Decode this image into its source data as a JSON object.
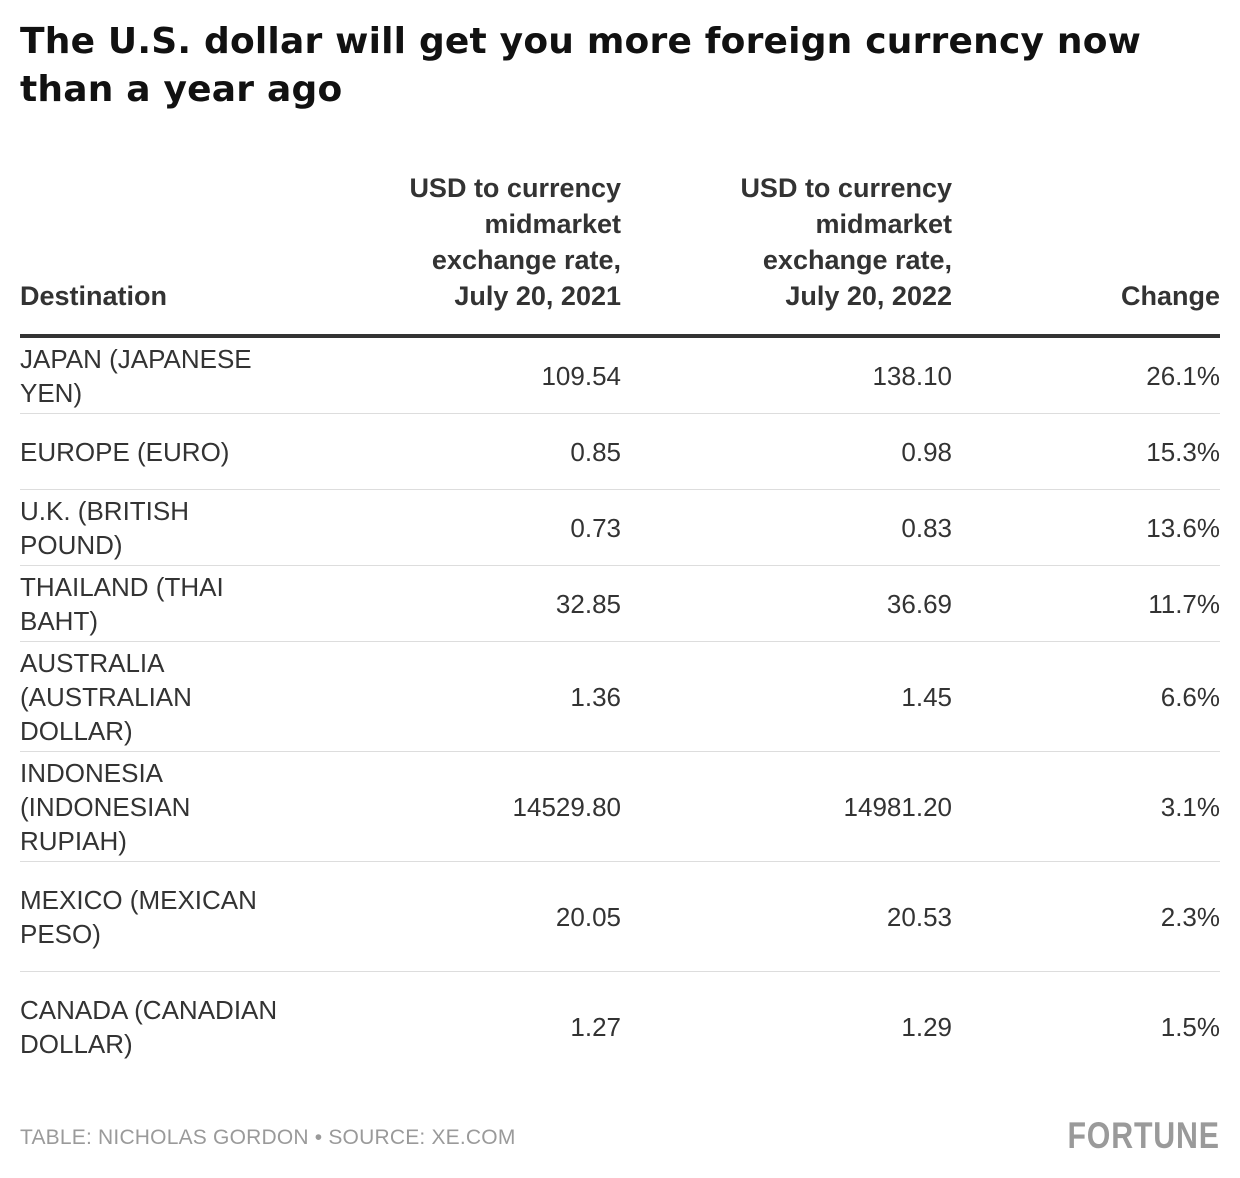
{
  "title": "The U.S. dollar will get you more foreign currency now than a year ago",
  "table": {
    "headers": [
      "Destination",
      "USD to currency midmarket exchange rate, July 20, 2021",
      "USD to currency midmarket exchange rate, July 20, 2022",
      "Change"
    ],
    "rows": [
      {
        "destination": "JAPAN (JAPANESE YEN)",
        "rate_2021": "109.54",
        "rate_2022": "138.10",
        "change": "26.1%"
      },
      {
        "destination": "EUROPE (EURO)",
        "rate_2021": "0.85",
        "rate_2022": "0.98",
        "change": "15.3%"
      },
      {
        "destination": "U.K. (BRITISH POUND)",
        "rate_2021": "0.73",
        "rate_2022": "0.83",
        "change": "13.6%"
      },
      {
        "destination": "THAILAND (THAI BAHT)",
        "rate_2021": "32.85",
        "rate_2022": "36.69",
        "change": "11.7%"
      },
      {
        "destination": "AUSTRALIA (AUSTRALIAN DOLLAR)",
        "rate_2021": "1.36",
        "rate_2022": "1.45",
        "change": "6.6%"
      },
      {
        "destination": "INDONESIA (INDONESIAN RUPIAH)",
        "rate_2021": "14529.80",
        "rate_2022": "14981.20",
        "change": "3.1%"
      },
      {
        "destination": "MEXICO (MEXICAN PESO)",
        "rate_2021": "20.05",
        "rate_2022": "20.53",
        "change": "2.3%"
      },
      {
        "destination": "CANADA (CANADIAN DOLLAR)",
        "rate_2021": "1.27",
        "rate_2022": "1.29",
        "change": "1.5%"
      }
    ]
  },
  "footer": {
    "credit": "TABLE: NICHOLAS GORDON • SOURCE: XE.COM",
    "logo": "FORTUNE"
  },
  "chart_data": {
    "type": "table",
    "title": "The U.S. dollar will get you more foreign currency now than a year ago",
    "columns": [
      "Destination",
      "USD to currency midmarket exchange rate, July 20, 2021",
      "USD to currency midmarket exchange rate, July 20, 2022",
      "Change"
    ],
    "rows": [
      [
        "JAPAN (JAPANESE YEN)",
        109.54,
        138.1,
        "26.1%"
      ],
      [
        "EUROPE (EURO)",
        0.85,
        0.98,
        "15.3%"
      ],
      [
        "U.K. (BRITISH POUND)",
        0.73,
        0.83,
        "13.6%"
      ],
      [
        "THAILAND (THAI BAHT)",
        32.85,
        36.69,
        "11.7%"
      ],
      [
        "AUSTRALIA (AUSTRALIAN DOLLAR)",
        1.36,
        1.45,
        "6.6%"
      ],
      [
        "INDONESIA (INDONESIAN RUPIAH)",
        14529.8,
        14981.2,
        "3.1%"
      ],
      [
        "MEXICO (MEXICAN PESO)",
        20.05,
        20.53,
        "2.3%"
      ],
      [
        "CANADA (CANADIAN DOLLAR)",
        1.27,
        1.29,
        "1.5%"
      ]
    ]
  }
}
